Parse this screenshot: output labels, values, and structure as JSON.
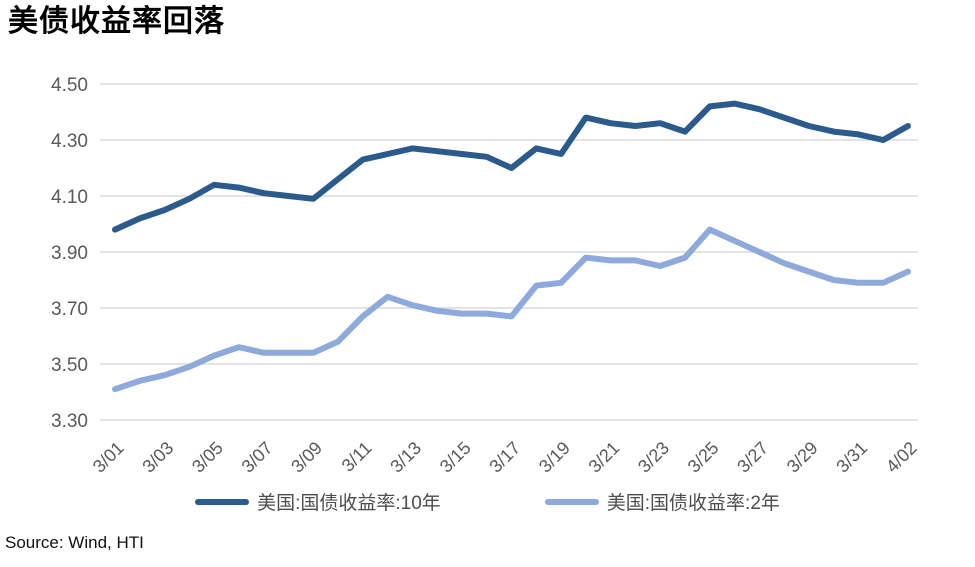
{
  "title": "美债收益率回落",
  "source": "Source: Wind, HTI",
  "colors": {
    "series_10y": "#2B5A8C",
    "series_2y": "#8EA9DB",
    "gridline": "#D2D2D2",
    "tick_label": "#595959"
  },
  "legend": {
    "items": [
      {
        "label": "美国:国债收益率:10年"
      },
      {
        "label": "美国:国债收益率:2年"
      }
    ]
  },
  "chart_data": {
    "type": "line",
    "title": "美债收益率回落",
    "xlabel": "",
    "ylabel": "",
    "ylim": [
      3.3,
      4.5
    ],
    "yticks": [
      4.5,
      4.3,
      4.1,
      3.9,
      3.7,
      3.5,
      3.3
    ],
    "grid": "horizontal",
    "legend_position": "bottom",
    "x_tick_every": 2,
    "x": [
      "3/01",
      "3/02",
      "3/03",
      "3/04",
      "3/05",
      "3/06",
      "3/07",
      "3/08",
      "3/09",
      "3/10",
      "3/11",
      "3/12",
      "3/13",
      "3/14",
      "3/15",
      "3/16",
      "3/17",
      "3/18",
      "3/19",
      "3/20",
      "3/21",
      "3/22",
      "3/23",
      "3/24",
      "3/25",
      "3/26",
      "3/27",
      "3/28",
      "3/29",
      "3/30",
      "3/31",
      "4/01",
      "4/02"
    ],
    "series": [
      {
        "name": "美国:国债收益率:10年",
        "color": "#2B5A8C",
        "values": [
          3.98,
          4.02,
          4.05,
          4.09,
          4.14,
          4.13,
          4.11,
          4.1,
          4.09,
          4.16,
          4.23,
          4.25,
          4.27,
          4.26,
          4.25,
          4.24,
          4.2,
          4.27,
          4.25,
          4.38,
          4.36,
          4.35,
          4.36,
          4.33,
          4.42,
          4.43,
          4.41,
          4.38,
          4.35,
          4.33,
          4.32,
          4.3,
          4.35
        ]
      },
      {
        "name": "美国:国债收益率:2年",
        "color": "#8EA9DB",
        "values": [
          3.41,
          3.44,
          3.46,
          3.49,
          3.53,
          3.56,
          3.54,
          3.54,
          3.54,
          3.58,
          3.67,
          3.74,
          3.71,
          3.69,
          3.68,
          3.68,
          3.67,
          3.78,
          3.79,
          3.88,
          3.87,
          3.87,
          3.85,
          3.88,
          3.98,
          3.94,
          3.9,
          3.86,
          3.83,
          3.8,
          3.79,
          3.79,
          3.83
        ]
      }
    ]
  }
}
